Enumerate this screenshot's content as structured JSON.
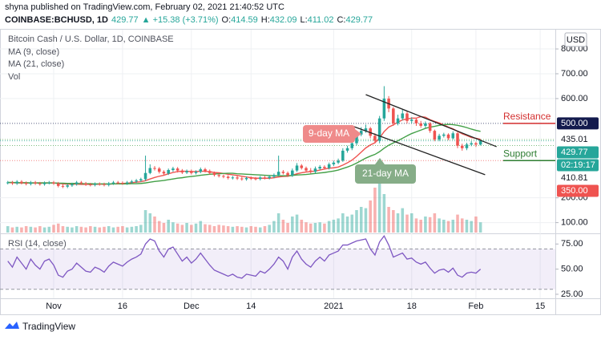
{
  "header": {
    "publish": "shyna published on TradingView.com, February 02, 2021 21:40:52 UTC",
    "symbol": "COINBASE:BCHUSD, 1D",
    "last": "429.77",
    "change": "▲ +15.38 (+3.71%)",
    "ohlc_labels": [
      "O:",
      "H:",
      "L:",
      "C:"
    ],
    "ohlc_values": [
      "414.59",
      "432.09",
      "411.02",
      "429.77"
    ]
  },
  "footer": {
    "brand": "TradingView"
  },
  "chart_data": {
    "type": "candlestick",
    "title": "Bitcoin Cash / U.S. Dollar, 1D, COINBASE",
    "currency": "USD",
    "xlim": [
      -1.7,
      119.3
    ],
    "xticks": [
      {
        "value": 10,
        "label": "Nov"
      },
      {
        "value": 25,
        "label": "16"
      },
      {
        "value": 40,
        "label": "Dec"
      },
      {
        "value": 53,
        "label": "14"
      },
      {
        "value": 71,
        "label": "2021"
      },
      {
        "value": 88,
        "label": "18"
      },
      {
        "value": 102,
        "label": "Feb"
      },
      {
        "value": 116,
        "label": "15"
      }
    ],
    "ylim": [
      60,
      868
    ],
    "yticks": [
      {
        "value": 100,
        "label": "100.00"
      },
      {
        "value": 200,
        "label": "200.00"
      },
      {
        "value": 600,
        "label": "600.00"
      },
      {
        "value": 700,
        "label": "700.00"
      },
      {
        "value": 800,
        "label": "800.00"
      }
    ],
    "grid": true,
    "x": [
      0,
      1,
      2,
      3,
      4,
      5,
      6,
      7,
      8,
      9,
      10,
      11,
      12,
      13,
      14,
      15,
      16,
      17,
      18,
      19,
      20,
      21,
      22,
      23,
      24,
      25,
      26,
      27,
      28,
      29,
      30,
      31,
      32,
      33,
      34,
      35,
      36,
      37,
      38,
      39,
      40,
      41,
      42,
      43,
      44,
      45,
      46,
      47,
      48,
      49,
      50,
      51,
      52,
      53,
      54,
      55,
      56,
      57,
      58,
      59,
      60,
      61,
      62,
      63,
      64,
      65,
      66,
      67,
      68,
      69,
      70,
      71,
      72,
      73,
      74,
      75,
      76,
      77,
      78,
      79,
      80,
      81,
      82,
      83,
      84,
      85,
      86,
      87,
      88,
      89,
      90,
      91,
      92,
      93,
      94,
      95,
      96,
      97,
      98,
      99,
      100,
      101,
      102,
      103
    ],
    "candles": {
      "up_color": "#26a69a",
      "down_color": "#ef5350",
      "open": [
        260,
        262,
        258,
        265,
        260,
        256,
        262,
        258,
        255,
        260,
        262,
        258,
        248,
        245,
        250,
        255,
        262,
        258,
        254,
        252,
        256,
        255,
        252,
        258,
        262,
        260,
        258,
        262,
        266,
        270,
        275,
        300,
        320,
        318,
        305,
        298,
        312,
        318,
        310,
        302,
        308,
        300,
        305,
        315,
        308,
        300,
        292,
        288,
        285,
        280,
        282,
        278,
        275,
        280,
        278,
        276,
        282,
        280,
        285,
        292,
        305,
        300,
        290,
        310,
        330,
        320,
        310,
        305,
        318,
        325,
        320,
        335,
        342,
        350,
        390,
        400,
        420,
        455,
        470,
        480,
        450,
        430,
        520,
        600,
        560,
        500,
        520,
        540,
        510,
        515,
        500,
        490,
        500,
        470,
        435,
        450,
        455,
        440,
        460,
        410,
        400,
        415,
        420,
        414.59
      ],
      "high": [
        268,
        268,
        271,
        271,
        266,
        268,
        268,
        264,
        266,
        268,
        268,
        264,
        254,
        256,
        261,
        268,
        268,
        264,
        260,
        262,
        262,
        261,
        264,
        268,
        268,
        266,
        268,
        272,
        276,
        281,
        370,
        335,
        328,
        324,
        311,
        318,
        325,
        324,
        316,
        314,
        314,
        311,
        322,
        321,
        314,
        306,
        298,
        294,
        291,
        288,
        288,
        284,
        286,
        286,
        284,
        288,
        288,
        291,
        298,
        370,
        312,
        306,
        318,
        340,
        336,
        326,
        320,
        326,
        332,
        331,
        342,
        350,
        358,
        400,
        410,
        430,
        470,
        485,
        495,
        486,
        460,
        530,
        650,
        610,
        566,
        535,
        555,
        548,
        525,
        520,
        510,
        508,
        505,
        475,
        458,
        462,
        460,
        468,
        465,
        418,
        422,
        428,
        426,
        432.09
      ],
      "low": [
        254,
        252,
        252,
        254,
        250,
        250,
        252,
        249,
        249,
        254,
        252,
        242,
        239,
        239,
        244,
        249,
        252,
        248,
        246,
        246,
        249,
        246,
        246,
        252,
        254,
        252,
        252,
        256,
        260,
        264,
        268,
        295,
        310,
        298,
        292,
        292,
        305,
        302,
        296,
        296,
        294,
        294,
        299,
        302,
        294,
        286,
        282,
        279,
        274,
        274,
        272,
        269,
        269,
        272,
        270,
        270,
        274,
        274,
        279,
        286,
        294,
        284,
        284,
        304,
        314,
        304,
        298,
        298,
        312,
        314,
        314,
        328,
        336,
        345,
        382,
        392,
        412,
        448,
        462,
        440,
        420,
        420,
        510,
        545,
        490,
        492,
        512,
        500,
        500,
        490,
        482,
        482,
        462,
        428,
        428,
        443,
        432,
        435,
        400,
        390,
        392,
        408,
        405,
        411.02
      ],
      "close": [
        262,
        258,
        265,
        260,
        256,
        262,
        258,
        255,
        260,
        262,
        258,
        248,
        245,
        250,
        255,
        262,
        258,
        254,
        252,
        256,
        255,
        252,
        258,
        262,
        260,
        258,
        262,
        266,
        270,
        275,
        300,
        320,
        318,
        305,
        298,
        312,
        318,
        310,
        302,
        308,
        300,
        305,
        315,
        308,
        300,
        292,
        288,
        285,
        280,
        282,
        278,
        275,
        280,
        278,
        276,
        282,
        280,
        285,
        292,
        305,
        300,
        290,
        310,
        330,
        320,
        310,
        305,
        318,
        325,
        320,
        335,
        342,
        350,
        390,
        400,
        420,
        455,
        470,
        480,
        450,
        430,
        520,
        600,
        560,
        500,
        520,
        540,
        510,
        515,
        500,
        490,
        500,
        470,
        435,
        450,
        455,
        440,
        460,
        410,
        400,
        415,
        420,
        414.59,
        429.77
      ]
    },
    "series": [
      {
        "name": "MA (9, close)",
        "color": "#ef5350",
        "values": [
          261,
          261,
          260,
          260,
          260,
          260,
          260,
          260,
          260,
          260,
          260,
          258,
          256,
          255,
          255,
          255,
          254,
          254,
          254,
          254,
          255,
          255,
          255,
          256,
          257,
          258,
          259,
          261,
          263,
          265,
          269,
          276,
          282,
          287,
          291,
          297,
          302,
          306,
          307,
          307,
          306,
          306,
          307,
          307,
          305,
          302,
          301,
          298,
          295,
          293,
          290,
          287,
          284,
          281,
          279,
          279,
          279,
          279,
          281,
          284,
          286,
          287,
          291,
          297,
          301,
          304,
          306,
          308,
          312,
          316,
          319,
          321,
          324,
          332,
          341,
          352,
          367,
          384,
          401,
          413,
          422,
          441,
          467,
          485,
          494,
          505,
          514,
          518,
          521,
          521,
          527,
          525,
          515,
          508,
          502,
          494,
          485,
          478,
          468,
          458,
          451,
          443,
          440,
          436
        ]
      },
      {
        "name": "MA (21, close)",
        "color": "#43a047",
        "values": [
          262,
          262,
          261,
          261,
          261,
          260,
          260,
          260,
          260,
          260,
          260,
          259,
          259,
          258,
          258,
          258,
          257,
          257,
          257,
          256,
          256,
          256,
          256,
          256,
          256,
          256,
          256,
          257,
          257,
          258,
          260,
          263,
          266,
          268,
          270,
          273,
          276,
          279,
          281,
          284,
          286,
          288,
          291,
          293,
          295,
          296,
          297,
          298,
          299,
          299,
          297,
          296,
          295,
          294,
          293,
          292,
          291,
          290,
          289,
          289,
          289,
          289,
          290,
          292,
          293,
          294,
          296,
          298,
          300,
          302,
          305,
          308,
          312,
          318,
          324,
          331,
          340,
          350,
          360,
          368,
          375,
          386,
          400,
          412,
          421,
          430,
          440,
          450,
          459,
          466,
          473,
          480,
          485,
          488,
          492,
          495,
          496,
          495,
          492,
          488,
          483,
          477,
          472,
          468
        ]
      }
    ],
    "volume": {
      "name": "Vol",
      "ylim": [
        0,
        100
      ],
      "values": [
        10,
        8,
        9,
        8,
        10,
        9,
        8,
        10,
        8,
        9,
        12,
        14,
        10,
        9,
        8,
        10,
        9,
        8,
        10,
        9,
        8,
        9,
        10,
        8,
        9,
        10,
        8,
        9,
        10,
        12,
        35,
        30,
        25,
        18,
        15,
        20,
        16,
        14,
        12,
        15,
        12,
        14,
        18,
        13,
        12,
        10,
        12,
        11,
        10,
        9,
        10,
        9,
        8,
        10,
        9,
        8,
        10,
        12,
        18,
        30,
        20,
        15,
        25,
        28,
        20,
        16,
        14,
        15,
        16,
        14,
        18,
        20,
        22,
        30,
        25,
        28,
        35,
        40,
        38,
        50,
        70,
        85,
        60,
        40,
        35,
        30,
        38,
        28,
        30,
        22,
        20,
        25,
        24,
        30,
        22,
        20,
        18,
        20,
        28,
        22,
        20,
        18,
        25,
        16
      ]
    },
    "rsi": {
      "name": "RSI (14, close)",
      "color": "#7e57c2",
      "ylim": [
        21,
        84
      ],
      "band": [
        30,
        70
      ],
      "yticks": [
        {
          "value": 75,
          "label": "75.00"
        },
        {
          "value": 50,
          "label": "50.00"
        },
        {
          "value": 25,
          "label": "25.00"
        }
      ],
      "values": [
        58,
        52,
        62,
        56,
        50,
        60,
        54,
        50,
        58,
        60,
        54,
        44,
        42,
        48,
        50,
        56,
        52,
        48,
        47,
        52,
        50,
        47,
        53,
        57,
        55,
        53,
        57,
        60,
        62,
        65,
        75,
        80,
        78,
        68,
        62,
        70,
        72,
        65,
        58,
        62,
        56,
        60,
        66,
        60,
        54,
        49,
        47,
        45,
        43,
        45,
        42,
        41,
        45,
        44,
        43,
        48,
        46,
        50,
        55,
        62,
        58,
        50,
        62,
        68,
        60,
        55,
        52,
        58,
        62,
        58,
        64,
        66,
        68,
        74,
        74,
        76,
        78,
        79,
        80,
        70,
        64,
        77,
        83,
        74,
        62,
        64,
        66,
        60,
        61,
        57,
        55,
        57,
        51,
        46,
        49,
        50,
        47,
        51,
        44,
        42,
        46,
        47,
        46,
        50
      ]
    },
    "channel": [
      {
        "x": [
          78,
          106.5
        ],
        "values": [
          616,
          406
        ]
      },
      {
        "x": [
          75.4,
          104
        ],
        "values": [
          487,
          293
        ]
      }
    ],
    "price_labels": [
      {
        "value": 500,
        "label": "500.00",
        "color": "#131a4d"
      },
      {
        "value": 435.01,
        "label": "435.01"
      },
      {
        "value": 429.77,
        "label": "429.77",
        "color": "#26a69a",
        "countdown": "02:19:17"
      },
      {
        "value": 410.81,
        "label": "410.81"
      },
      {
        "value": 350,
        "label": "350.00",
        "color": "#ef5350"
      }
    ],
    "levels": [
      {
        "text": "Resistance",
        "value": 500,
        "color": "#d32f2f"
      },
      {
        "text": "Support",
        "value": 350,
        "color": "#2e7d32"
      }
    ],
    "annotations": [
      {
        "text": "9-day MA",
        "color": "#ef8a8a"
      },
      {
        "text": "21-day MA",
        "color": "#86ad88"
      }
    ]
  }
}
